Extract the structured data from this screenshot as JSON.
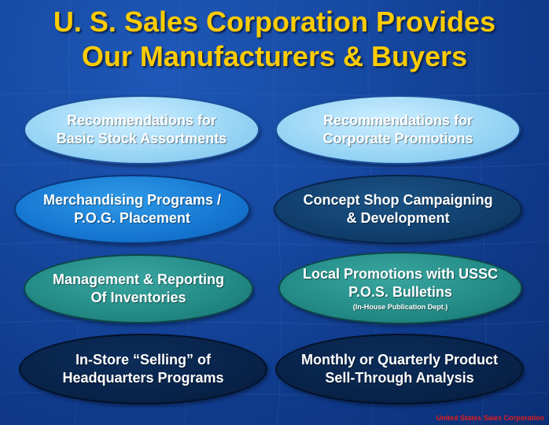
{
  "slide": {
    "title_line1": "U. S. Sales Corporation Provides",
    "title_line2": "Our Manufacturers & Buyers",
    "footer": "United States Sales Corporation"
  },
  "ovals": [
    {
      "lines": [
        "Recommendations for",
        "Basic Stock Assortments"
      ]
    },
    {
      "lines": [
        "Recommendations for",
        "Corporate Promotions"
      ]
    },
    {
      "lines": [
        "Merchandising Programs /",
        "P.O.G. Placement"
      ]
    },
    {
      "lines": [
        "Concept Shop Campaigning",
        "& Development"
      ]
    },
    {
      "lines": [
        "Management & Reporting",
        "Of Inventories"
      ]
    },
    {
      "lines": [
        "Local Promotions with USSC",
        "P.O.S. Bulletins"
      ],
      "note": "(In-House Publication Dept.)"
    },
    {
      "lines": [
        "In-Store “Selling” of",
        "Headquarters Programs"
      ]
    },
    {
      "lines": [
        "Monthly or Quarterly Product",
        "Sell-Through Analysis"
      ]
    }
  ],
  "colors": {
    "title": "#ffcc00",
    "light_blue": "#9bd6f6",
    "bright_blue": "#1677d2",
    "navy": "#103e6c",
    "teal": "#238a86",
    "dark_navy": "#08234a",
    "footer": "#e31b1b"
  }
}
